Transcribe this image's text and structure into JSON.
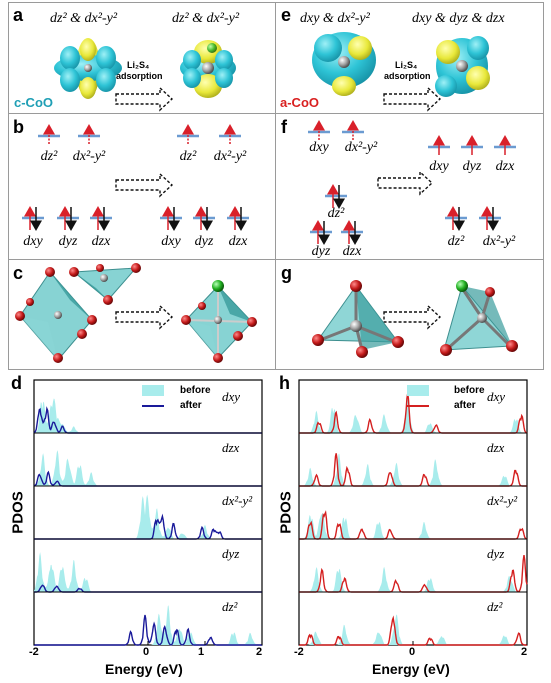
{
  "panels": {
    "a": {
      "label": "a",
      "left_title": "dz² & dx²-y²",
      "right_title": "dz² & dx²-y²",
      "tag": "c-CoO",
      "arrow_label_1": "Li₂S₄",
      "arrow_label_2": "adsorption"
    },
    "e": {
      "label": "e",
      "left_title": "dxy & dx²-y²",
      "right_title": "dxy & dyz & dzx",
      "tag": "a-CoO",
      "arrow_label_1": "Li₂S₄",
      "arrow_label_2": "adsorption"
    },
    "b": {
      "label": "b",
      "upper_left": [
        "dz²",
        "dx²-y²"
      ],
      "upper_right": [
        "dz²",
        "dx²-y²"
      ],
      "lower_left": [
        "dxy",
        "dyz",
        "dzx"
      ],
      "lower_right": [
        "dxy",
        "dyz",
        "dzx"
      ]
    },
    "f": {
      "label": "f",
      "left_top": [
        "dxy",
        "dx²-y²"
      ],
      "left_mid": "dz²",
      "left_bottom": [
        "dyz",
        "dzx"
      ],
      "right_top": [
        "dxy",
        "dyz",
        "dzx"
      ],
      "right_bottom": [
        "dz²",
        "dx²-y²"
      ]
    },
    "c": {
      "label": "c"
    },
    "g": {
      "label": "g"
    },
    "d": {
      "label": "d"
    },
    "h": {
      "label": "h"
    }
  },
  "colors": {
    "isosurface_cyan": "#2ec4d6",
    "isosurface_yellow": "#e8e83a",
    "spin_red": "#d9202a",
    "level_blue": "#6b9bd1",
    "polyhedron": "#5fc4c4",
    "oxygen": "#c41a1a",
    "sulfur": "#22b022",
    "cobalt": "#9a9a9a",
    "c_CoO_tag": "#1f9fb5",
    "a_CoO_tag": "#d92020",
    "dos_before": "#a8ecec",
    "dos_after_d": "#1a1a9a",
    "dos_after_h": "#d42020"
  },
  "chart_data": [
    {
      "panel": "d",
      "type": "area",
      "ylabel": "PDOS",
      "xlabel": "Energy (eV)",
      "xlim": [
        -2,
        2
      ],
      "xticks": [
        "-2",
        "0",
        "1",
        "2"
      ],
      "legend": [
        "before",
        "after"
      ],
      "legend_position": "top-right",
      "subplots": [
        {
          "orbital": "dxy",
          "before_peaks": [
            [
              -1.85,
              0.9
            ],
            [
              -1.7,
              0.8
            ],
            [
              -1.62,
              0.5
            ],
            [
              -1.5,
              0.3
            ],
            [
              -1.3,
              0.15
            ]
          ],
          "after_peaks": [
            [
              -1.9,
              0.85
            ],
            [
              -1.78,
              0.6
            ],
            [
              -1.65,
              0.4
            ],
            [
              -1.5,
              0.15
            ]
          ]
        },
        {
          "orbital": "dzx",
          "before_peaks": [
            [
              -1.85,
              0.8
            ],
            [
              -1.6,
              0.95
            ],
            [
              -1.4,
              0.85
            ],
            [
              -1.2,
              0.6
            ],
            [
              -1.0,
              0.3
            ]
          ],
          "after_peaks": [
            [
              -1.9,
              0.4
            ],
            [
              -1.75,
              0.3
            ],
            [
              -1.6,
              0.15
            ]
          ]
        },
        {
          "orbital": "dx²-y²",
          "before_peaks": [
            [
              -0.1,
              0.85
            ],
            [
              0.0,
              1.0
            ],
            [
              0.15,
              0.7
            ],
            [
              0.35,
              0.4
            ],
            [
              0.6,
              0.2
            ],
            [
              1.0,
              0.3
            ]
          ],
          "after_peaks": [
            [
              0.15,
              0.55
            ],
            [
              0.25,
              0.75
            ],
            [
              0.45,
              0.35
            ],
            [
              0.95,
              0.25
            ],
            [
              1.15,
              0.3
            ],
            [
              1.25,
              0.2
            ]
          ]
        },
        {
          "orbital": "dyz",
          "before_peaks": [
            [
              -1.9,
              0.9
            ],
            [
              -1.7,
              0.95
            ],
            [
              -1.5,
              0.8
            ],
            [
              -1.3,
              0.7
            ],
            [
              -1.1,
              0.4
            ]
          ],
          "after_peaks": [
            [
              -1.85,
              0.25
            ],
            [
              -1.6,
              0.2
            ],
            [
              -1.2,
              0.1
            ]
          ]
        },
        {
          "orbital": "dz²",
          "before_peaks": [
            [
              0.2,
              0.8
            ],
            [
              0.35,
              0.9
            ],
            [
              0.55,
              0.55
            ],
            [
              0.75,
              0.4
            ],
            [
              1.5,
              0.35
            ],
            [
              1.8,
              0.3
            ]
          ],
          "after_peaks": [
            [
              -0.3,
              0.3
            ],
            [
              -0.05,
              0.65
            ],
            [
              0.1,
              0.6
            ],
            [
              0.3,
              0.55
            ],
            [
              0.5,
              0.45
            ],
            [
              0.7,
              0.35
            ],
            [
              1.1,
              0.25
            ]
          ]
        }
      ]
    },
    {
      "panel": "h",
      "type": "area",
      "ylabel": "PDOS",
      "xlabel": "Energy (eV)",
      "xlim": [
        -2,
        2
      ],
      "xticks": [
        "-2",
        "0",
        "2"
      ],
      "legend": [
        "before",
        "after"
      ],
      "legend_position": "top-right",
      "subplots": [
        {
          "orbital": "dxy",
          "before_peaks": [
            [
              -1.7,
              0.5
            ],
            [
              -1.4,
              0.7
            ],
            [
              -1.0,
              0.6
            ],
            [
              -0.5,
              0.5
            ],
            [
              -0.1,
              0.9
            ],
            [
              0.3,
              0.3
            ],
            [
              1.8,
              0.4
            ]
          ],
          "after_peaks": [
            [
              -1.65,
              0.3
            ],
            [
              -1.35,
              0.45
            ],
            [
              -0.75,
              0.35
            ],
            [
              -0.1,
              1.0
            ],
            [
              0.4,
              0.25
            ],
            [
              1.9,
              0.5
            ]
          ]
        },
        {
          "orbital": "dzx",
          "before_peaks": [
            [
              -1.8,
              0.4
            ],
            [
              -1.3,
              0.7
            ],
            [
              -0.8,
              0.5
            ],
            [
              -0.3,
              0.6
            ],
            [
              0.4,
              0.7
            ],
            [
              1.6,
              0.3
            ]
          ],
          "after_peaks": [
            [
              -1.7,
              0.3
            ],
            [
              -1.35,
              0.7
            ],
            [
              -1.15,
              0.55
            ],
            [
              -0.4,
              0.5
            ],
            [
              0.2,
              0.35
            ],
            [
              1.8,
              0.5
            ]
          ]
        },
        {
          "orbital": "dx²-y²",
          "before_peaks": [
            [
              -1.8,
              0.7
            ],
            [
              -1.6,
              0.95
            ],
            [
              -1.2,
              0.6
            ],
            [
              -0.6,
              0.5
            ],
            [
              0.2,
              0.4
            ]
          ],
          "after_peaks": [
            [
              -1.8,
              0.5
            ],
            [
              -1.55,
              0.8
            ],
            [
              -1.3,
              0.45
            ],
            [
              -0.9,
              0.35
            ],
            [
              -0.4,
              0.3
            ],
            [
              1.9,
              0.3
            ]
          ]
        },
        {
          "orbital": "dyz",
          "before_peaks": [
            [
              -1.7,
              0.6
            ],
            [
              -1.3,
              0.7
            ],
            [
              -0.5,
              0.6
            ],
            [
              0.3,
              0.4
            ],
            [
              1.7,
              0.5
            ]
          ],
          "after_peaks": [
            [
              -1.6,
              0.5
            ],
            [
              -1.2,
              0.45
            ],
            [
              -0.3,
              0.35
            ],
            [
              0.2,
              0.25
            ],
            [
              1.75,
              0.7
            ],
            [
              1.95,
              0.8
            ]
          ]
        },
        {
          "orbital": "dz²",
          "before_peaks": [
            [
              -1.7,
              0.4
            ],
            [
              -1.2,
              0.5
            ],
            [
              -0.6,
              0.45
            ],
            [
              -0.3,
              0.9
            ],
            [
              0.5,
              0.3
            ],
            [
              1.6,
              0.3
            ]
          ],
          "after_peaks": [
            [
              -1.8,
              0.3
            ],
            [
              -1.3,
              0.25
            ],
            [
              -0.35,
              0.95
            ],
            [
              0.3,
              0.2
            ],
            [
              1.85,
              0.35
            ]
          ]
        }
      ]
    }
  ]
}
